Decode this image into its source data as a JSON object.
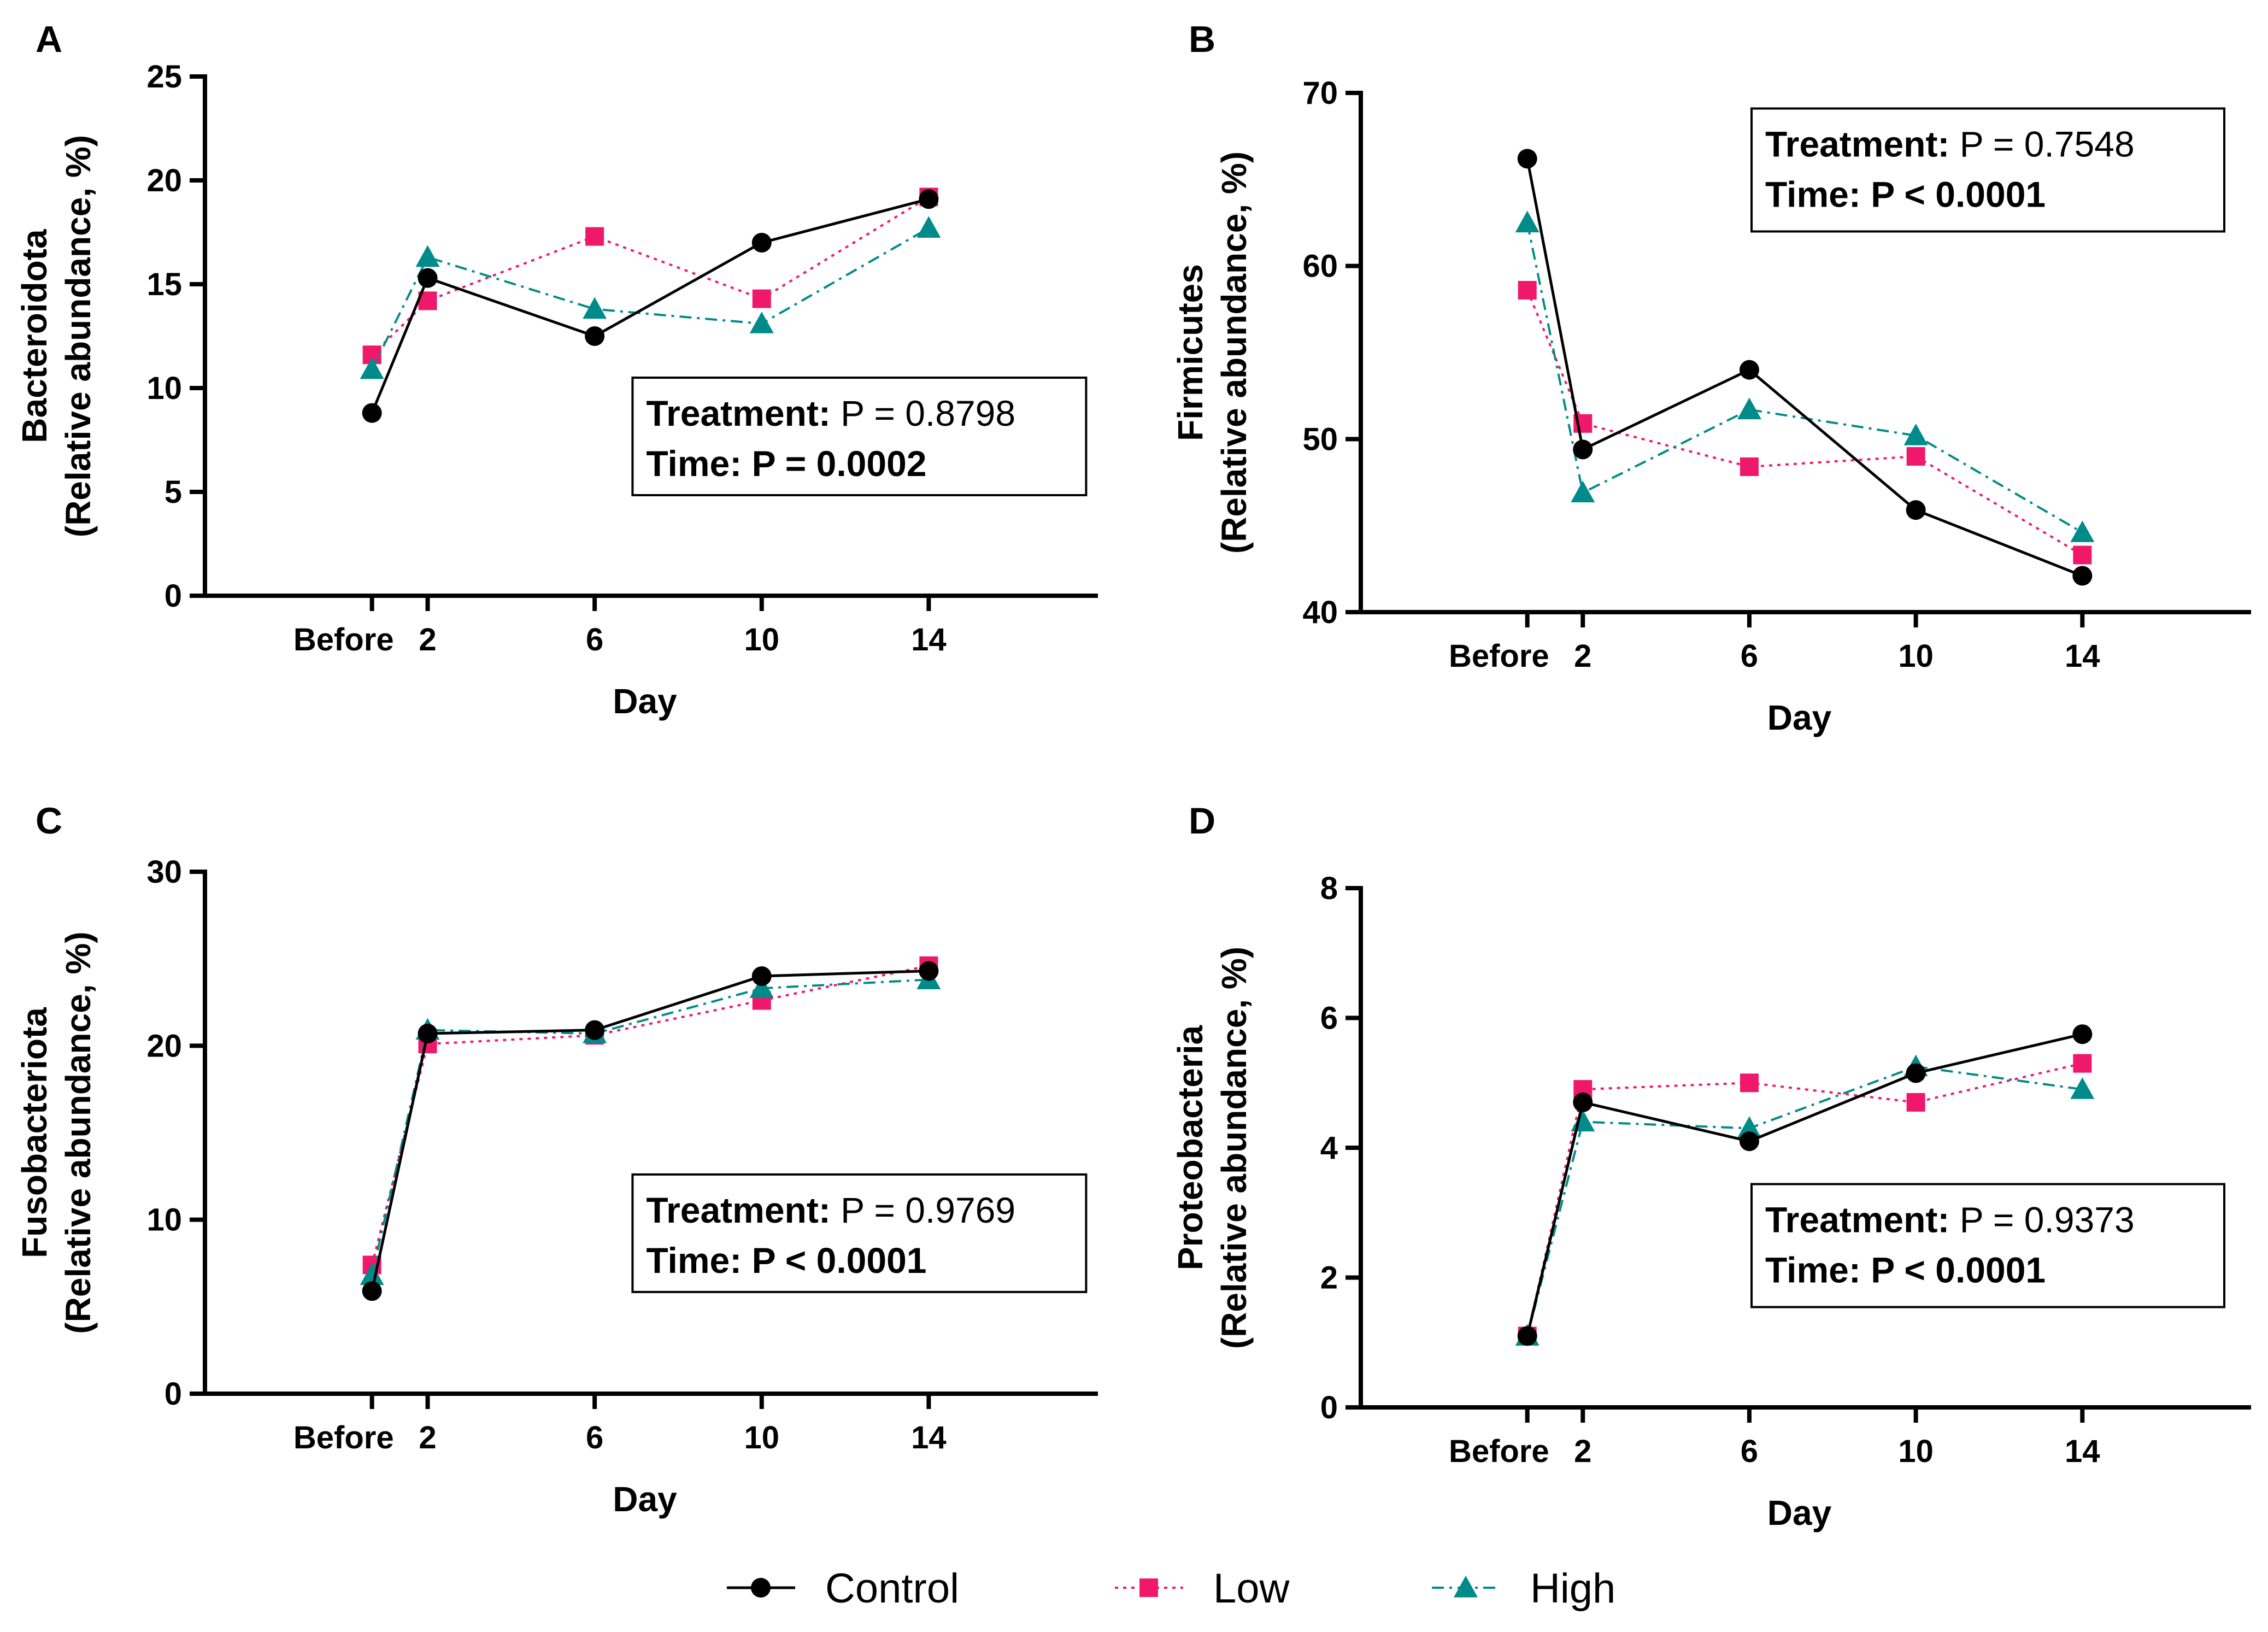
{
  "legend": [
    {
      "name": "Control",
      "color": "#000000",
      "marker": "circle",
      "dash": "solid"
    },
    {
      "name": "Low",
      "color": "#f0186b",
      "marker": "square",
      "dash": "dotted"
    },
    {
      "name": "High",
      "color": "#008b8b",
      "marker": "triangle",
      "dash": "dashdot"
    }
  ],
  "chart_data": [
    {
      "type": "line",
      "panel": "A",
      "xlabel": "Day",
      "ylabel_line1": "Bacteroidota",
      "ylabel_line2": "(Relative abundance, %)",
      "categories": [
        "Before",
        "2",
        "6",
        "10",
        "14"
      ],
      "x": [
        0,
        1,
        4,
        7,
        10
      ],
      "xlim": [
        -3,
        13
      ],
      "ylim": [
        0,
        25
      ],
      "yticks": [
        0,
        5,
        10,
        15,
        20,
        25
      ],
      "series": [
        {
          "name": "Control",
          "values": [
            8.8,
            15.3,
            12.5,
            17.0,
            19.1
          ]
        },
        {
          "name": "Low",
          "values": [
            11.6,
            14.2,
            17.3,
            14.3,
            19.2
          ]
        },
        {
          "name": "High",
          "values": [
            10.9,
            16.3,
            13.8,
            13.1,
            17.7
          ]
        }
      ],
      "stats": {
        "treatment_label": "Treatment:",
        "treatment_value": "P = 0.8798",
        "time_label": "Time:",
        "time_value": "P = 0.0002"
      },
      "stats_box_position": "center-right"
    },
    {
      "type": "line",
      "panel": "B",
      "xlabel": "Day",
      "ylabel_line1": "Firmicutes",
      "ylabel_line2": "(Relative abundance, %)",
      "categories": [
        "Before",
        "2",
        "6",
        "10",
        "14"
      ],
      "x": [
        0,
        1,
        4,
        7,
        10
      ],
      "xlim": [
        -3,
        13
      ],
      "ylim": [
        40,
        70
      ],
      "yticks": [
        40,
        50,
        60,
        70
      ],
      "series": [
        {
          "name": "Control",
          "values": [
            66.2,
            49.4,
            54.0,
            45.9,
            42.1
          ]
        },
        {
          "name": "Low",
          "values": [
            58.6,
            50.9,
            48.4,
            49.0,
            43.3
          ]
        },
        {
          "name": "High",
          "values": [
            62.5,
            46.9,
            51.7,
            50.2,
            44.6
          ]
        }
      ],
      "stats": {
        "treatment_label": "Treatment:",
        "treatment_value": "P = 0.7548",
        "time_label": "Time:",
        "time_value": "P < 0.0001"
      },
      "stats_box_position": "top-right"
    },
    {
      "type": "line",
      "panel": "C",
      "xlabel": "Day",
      "ylabel_line1": "Fusobacteriota",
      "ylabel_line2": "(Relative abundance, %)",
      "categories": [
        "Before",
        "2",
        "6",
        "10",
        "14"
      ],
      "x": [
        0,
        1,
        4,
        7,
        10
      ],
      "xlim": [
        -3,
        13
      ],
      "ylim": [
        0,
        30
      ],
      "yticks": [
        0,
        10,
        20,
        30
      ],
      "series": [
        {
          "name": "Control",
          "values": [
            5.9,
            20.7,
            20.9,
            24.0,
            24.3
          ]
        },
        {
          "name": "Low",
          "values": [
            7.4,
            20.1,
            20.6,
            22.6,
            24.6
          ]
        },
        {
          "name": "High",
          "values": [
            6.8,
            20.9,
            20.7,
            23.3,
            23.8
          ]
        }
      ],
      "stats": {
        "treatment_label": "Treatment:",
        "treatment_value": "P = 0.9769",
        "time_label": "Time:",
        "time_value": "P < 0.0001"
      },
      "stats_box_position": "center-right"
    },
    {
      "type": "line",
      "panel": "D",
      "xlabel": "Day",
      "ylabel_line1": "Proteobacteria",
      "ylabel_line2": "(Relative abundance, %)",
      "categories": [
        "Before",
        "2",
        "6",
        "10",
        "14"
      ],
      "x": [
        0,
        1,
        4,
        7,
        10
      ],
      "xlim": [
        -3,
        13
      ],
      "ylim": [
        0,
        8
      ],
      "yticks": [
        0,
        2,
        4,
        6,
        8
      ],
      "series": [
        {
          "name": "Control",
          "values": [
            1.1,
            4.7,
            4.1,
            5.15,
            5.75
          ]
        },
        {
          "name": "Low",
          "values": [
            1.1,
            4.9,
            5.0,
            4.7,
            5.3
          ]
        },
        {
          "name": "High",
          "values": [
            1.1,
            4.4,
            4.3,
            5.25,
            4.9
          ]
        }
      ],
      "stats": {
        "treatment_label": "Treatment:",
        "treatment_value": "P = 0.9373",
        "time_label": "Time:",
        "time_value": "P < 0.0001"
      },
      "stats_box_position": "bottom-right"
    }
  ]
}
